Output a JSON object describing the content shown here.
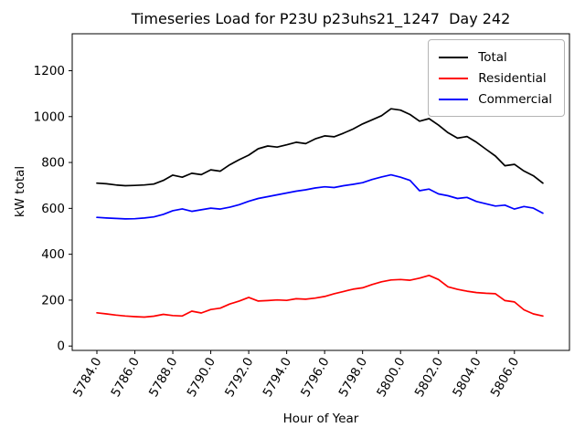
{
  "chart_data": {
    "type": "line",
    "title": "Timeseries Load for P23U p23uhs21_1247  Day 242",
    "xlabel": "Hour of Year",
    "ylabel": "kW total",
    "xlim": [
      5782.7,
      5808.9
    ],
    "ylim": [
      -19,
      1361
    ],
    "grid": false,
    "legend": {
      "position": "upper right"
    },
    "x": [
      5784.0,
      5784.5,
      5785.0,
      5785.5,
      5786.0,
      5786.5,
      5787.0,
      5787.5,
      5788.0,
      5788.5,
      5789.0,
      5789.5,
      5790.0,
      5790.5,
      5791.0,
      5791.5,
      5792.0,
      5792.5,
      5793.0,
      5793.5,
      5794.0,
      5794.5,
      5795.0,
      5795.5,
      5796.0,
      5796.5,
      5797.0,
      5797.5,
      5798.0,
      5798.5,
      5799.0,
      5799.5,
      5800.0,
      5800.5,
      5801.0,
      5801.5,
      5802.0,
      5802.5,
      5803.0,
      5803.5,
      5804.0,
      5804.5,
      5805.0,
      5805.5,
      5806.0,
      5806.5,
      5807.0,
      5807.5
    ],
    "series": [
      {
        "name": "Total",
        "color": "#000000",
        "values": [
          710,
          707,
          702,
          699,
          700,
          702,
          706,
          722,
          745,
          736,
          753,
          747,
          768,
          762,
          790,
          812,
          832,
          860,
          872,
          867,
          877,
          888,
          882,
          903,
          916,
          912,
          928,
          946,
          968,
          986,
          1004,
          1034,
          1028,
          1009,
          980,
          991,
          963,
          930,
          906,
          913,
          888,
          858,
          828,
          786,
          792,
          763,
          742,
          710
        ]
      },
      {
        "name": "Residential",
        "color": "#ff0000",
        "values": [
          145,
          140,
          135,
          131,
          128,
          126,
          130,
          138,
          133,
          131,
          152,
          144,
          159,
          165,
          183,
          196,
          212,
          196,
          198,
          201,
          199,
          206,
          204,
          209,
          216,
          228,
          238,
          248,
          254,
          268,
          280,
          288,
          290,
          287,
          296,
          308,
          290,
          258,
          247,
          239,
          233,
          230,
          228,
          198,
          192,
          158,
          140,
          131
        ]
      },
      {
        "name": "Commercial",
        "color": "#0000ff",
        "values": [
          561,
          558,
          556,
          554,
          555,
          558,
          563,
          574,
          590,
          598,
          587,
          594,
          601,
          597,
          605,
          616,
          631,
          643,
          651,
          659,
          667,
          675,
          681,
          689,
          694,
          691,
          699,
          705,
          712,
          726,
          737,
          746,
          736,
          722,
          677,
          684,
          663,
          655,
          643,
          648,
          630,
          620,
          610,
          614,
          597,
          608,
          601,
          579
        ]
      }
    ],
    "xticks": [
      5784,
      5786,
      5788,
      5790,
      5792,
      5794,
      5796,
      5798,
      5800,
      5802,
      5804,
      5806
    ],
    "xtick_labels": [
      "5784.0",
      "5786.0",
      "5788.0",
      "5790.0",
      "5792.0",
      "5794.0",
      "5796.0",
      "5798.0",
      "5800.0",
      "5802.0",
      "5804.0",
      "5806.0"
    ],
    "yticks": [
      0,
      200,
      400,
      600,
      800,
      1000,
      1200
    ],
    "ytick_labels": [
      "0",
      "200",
      "400",
      "600",
      "800",
      "1000",
      "1200"
    ]
  }
}
